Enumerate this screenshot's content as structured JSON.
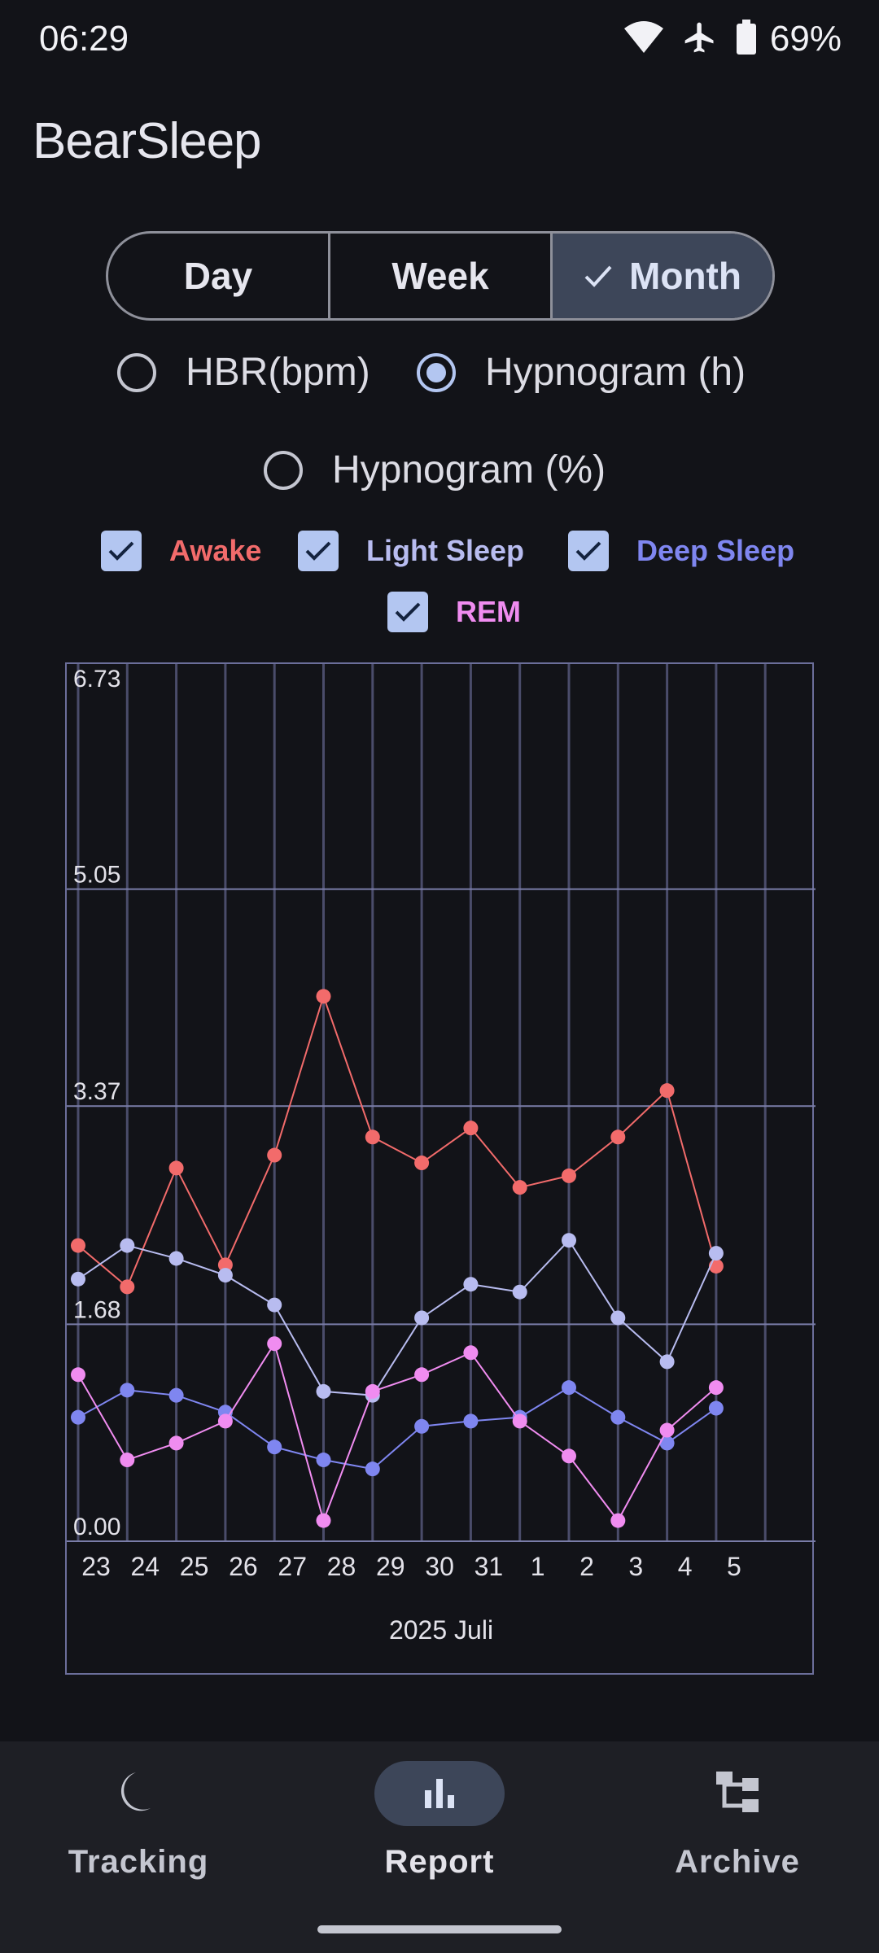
{
  "status_bar": {
    "time": "06:29",
    "battery": "69%",
    "icons": [
      "wifi-icon",
      "airplane-icon",
      "battery-icon"
    ]
  },
  "app": {
    "title": "BearSleep"
  },
  "range_selector": {
    "options": [
      "Day",
      "Week",
      "Month"
    ],
    "selected": "Month"
  },
  "mode_radios": {
    "options": [
      "HBR(bpm)",
      "Hypnogram (h)",
      "Hypnogram (%)"
    ],
    "selected": "Hypnogram (h)"
  },
  "series_toggles": [
    {
      "label": "Awake",
      "checked": true,
      "color": "#f26b6b"
    },
    {
      "label": "Light Sleep",
      "checked": true,
      "color": "#b8bcf0"
    },
    {
      "label": "Deep Sleep",
      "checked": true,
      "color": "#7f86f0"
    },
    {
      "label": "REM",
      "checked": true,
      "color": "#f08cf0"
    }
  ],
  "chart_data": {
    "type": "line",
    "xlabel": "2025 Juli",
    "x": [
      "23",
      "24",
      "25",
      "26",
      "27",
      "28",
      "29",
      "30",
      "31",
      "1",
      "2",
      "3",
      "4",
      "5"
    ],
    "ylim": [
      0,
      6.73
    ],
    "yticks": [
      "0.00",
      "1.68",
      "3.37",
      "5.05",
      "6.73"
    ],
    "grid": true,
    "series": [
      {
        "name": "Awake",
        "color": "#f26b6b",
        "values": [
          2.29,
          1.97,
          2.89,
          2.14,
          2.99,
          4.22,
          3.13,
          2.93,
          3.2,
          2.74,
          2.83,
          3.13,
          3.49,
          2.13
        ]
      },
      {
        "name": "Light Sleep",
        "color": "#b8bcf0",
        "values": [
          2.03,
          2.29,
          2.19,
          2.06,
          1.83,
          1.16,
          1.13,
          1.73,
          1.99,
          1.93,
          2.33,
          1.73,
          1.39,
          2.23
        ]
      },
      {
        "name": "Deep Sleep",
        "color": "#7f86f0",
        "values": [
          0.96,
          1.17,
          1.13,
          1.0,
          0.73,
          0.63,
          0.56,
          0.89,
          0.93,
          0.96,
          1.19,
          0.96,
          0.76,
          1.03
        ]
      },
      {
        "name": "REM",
        "color": "#f08cf0",
        "values": [
          1.29,
          0.63,
          0.76,
          0.93,
          1.53,
          0.16,
          1.16,
          1.29,
          1.46,
          0.93,
          0.66,
          0.16,
          0.86,
          1.19
        ]
      }
    ]
  },
  "bottom_nav": {
    "items": [
      {
        "label": "Tracking",
        "icon": "moon-icon"
      },
      {
        "label": "Report",
        "icon": "bar-chart-icon"
      },
      {
        "label": "Archive",
        "icon": "archive-tree-icon"
      }
    ],
    "selected": "Report"
  }
}
